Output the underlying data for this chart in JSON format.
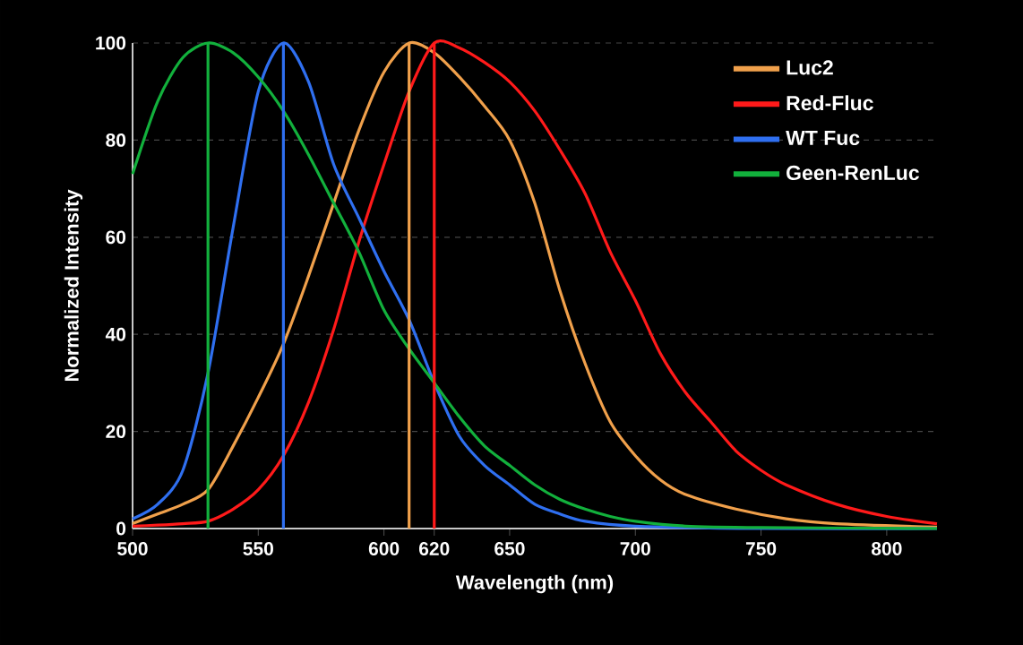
{
  "chart_data": {
    "type": "line",
    "xlabel": "Wavelength (nm)",
    "ylabel": "Normalized Intensity",
    "xlim": [
      500,
      820
    ],
    "ylim": [
      0,
      100
    ],
    "xticks": [
      500,
      550,
      600,
      620,
      650,
      700,
      750,
      800
    ],
    "yticks": [
      0,
      20,
      40,
      60,
      80,
      100
    ],
    "grid": "y",
    "legend": "top right",
    "series": [
      {
        "name": "Luc2",
        "color": "#f0a04b",
        "x": [
          500,
          510,
          520,
          530,
          540,
          550,
          560,
          570,
          580,
          590,
          600,
          610,
          620,
          630,
          640,
          650,
          660,
          670,
          680,
          690,
          700,
          710,
          720,
          740,
          760,
          780,
          820
        ],
        "values": [
          1,
          3,
          5,
          8,
          17,
          27,
          38,
          52,
          67,
          82,
          94,
          100,
          98,
          93,
          87,
          80,
          67,
          49,
          34,
          22,
          15,
          10,
          7,
          4,
          2,
          1,
          0.3
        ]
      },
      {
        "name": "Red-Fluc",
        "color": "#ff1a1a",
        "x": [
          500,
          510,
          520,
          530,
          540,
          550,
          560,
          570,
          580,
          590,
          600,
          610,
          620,
          630,
          640,
          650,
          660,
          670,
          680,
          690,
          700,
          710,
          720,
          730,
          740,
          750,
          760,
          780,
          800,
          820
        ],
        "values": [
          0.5,
          0.7,
          1,
          1.5,
          4,
          8,
          15,
          26,
          41,
          59,
          75,
          90,
          100,
          99,
          96,
          92,
          86,
          78,
          69,
          57,
          47,
          36,
          28,
          22,
          16,
          12,
          9,
          5,
          2.5,
          1
        ]
      },
      {
        "name": "WT Fuc",
        "color": "#2f6ff0",
        "x": [
          500,
          510,
          520,
          530,
          540,
          550,
          560,
          570,
          580,
          590,
          600,
          610,
          620,
          630,
          640,
          650,
          660,
          670,
          680,
          700,
          750,
          820
        ],
        "values": [
          2,
          5,
          12,
          32,
          62,
          90,
          100,
          92,
          75,
          64,
          53,
          43,
          30,
          19,
          13,
          9,
          5,
          3,
          1.5,
          0.5,
          0,
          0
        ]
      },
      {
        "name": "Geen-RenLuc",
        "color": "#12b03c",
        "x": [
          500,
          510,
          520,
          530,
          540,
          550,
          560,
          570,
          580,
          590,
          600,
          610,
          620,
          630,
          640,
          650,
          660,
          670,
          680,
          690,
          700,
          720,
          750,
          820
        ],
        "values": [
          73,
          88,
          97,
          100,
          98,
          93,
          86,
          77,
          67,
          57,
          45,
          37,
          30,
          23,
          17,
          13,
          9,
          6,
          4,
          2.5,
          1.5,
          0.5,
          0.2,
          0
        ]
      }
    ],
    "ref_lines": [
      {
        "axis": "x",
        "value": 610,
        "color": "#f0a04b"
      },
      {
        "axis": "x",
        "value": 620,
        "color": "#ff1a1a"
      },
      {
        "axis": "x",
        "value": 560,
        "color": "#2f6ff0"
      },
      {
        "axis": "x",
        "value": 530,
        "color": "#12b03c"
      }
    ]
  }
}
